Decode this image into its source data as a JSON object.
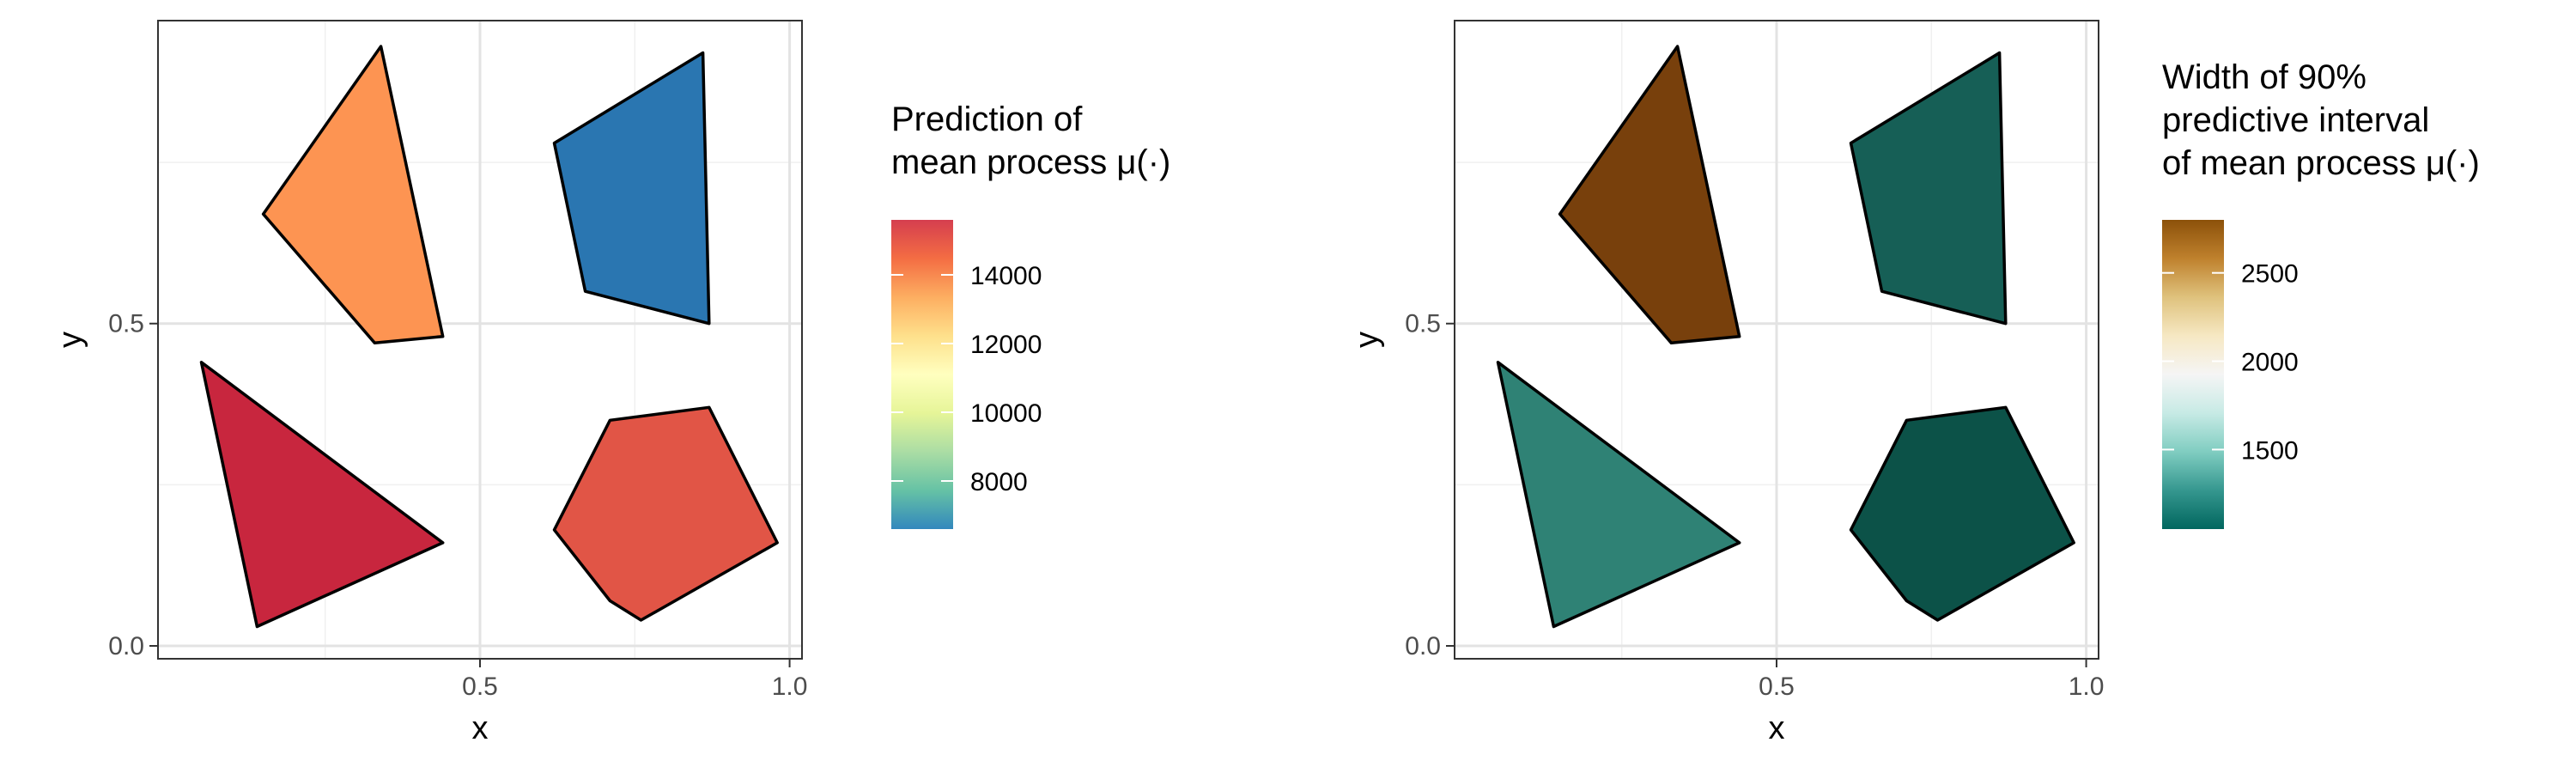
{
  "chart_data": [
    {
      "type": "polygon-map",
      "xlabel": "x",
      "ylabel": "y",
      "xlim": [
        -0.02,
        1.02
      ],
      "ylim": [
        -0.02,
        0.97
      ],
      "x_ticks": [
        {
          "value": 0.5,
          "label": "0.5"
        },
        {
          "value": 1.0,
          "label": "1.0"
        }
      ],
      "y_ticks": [
        {
          "value": 0.0,
          "label": "0.0"
        },
        {
          "value": 0.5,
          "label": "0.5"
        }
      ],
      "grid": true,
      "polygons": [
        {
          "id": "upper-left",
          "vertices": [
            [
              0.34,
              0.93
            ],
            [
              0.15,
              0.67
            ],
            [
              0.33,
              0.47
            ],
            [
              0.44,
              0.48
            ]
          ],
          "fill": "#FD9452"
        },
        {
          "id": "upper-right",
          "vertices": [
            [
              0.86,
              0.92
            ],
            [
              0.62,
              0.78
            ],
            [
              0.67,
              0.55
            ],
            [
              0.87,
              0.5
            ]
          ],
          "fill": "#2A76B1"
        },
        {
          "id": "lower-left",
          "vertices": [
            [
              0.05,
              0.44
            ],
            [
              0.44,
              0.16
            ],
            [
              0.14,
              0.03
            ]
          ],
          "fill": "#C8263E"
        },
        {
          "id": "lower-right",
          "vertices": [
            [
              0.71,
              0.35
            ],
            [
              0.87,
              0.37
            ],
            [
              0.98,
              0.16
            ],
            [
              0.76,
              0.04
            ],
            [
              0.71,
              0.07
            ],
            [
              0.62,
              0.18
            ]
          ],
          "fill": "#E15546"
        }
      ],
      "legend": {
        "title_lines": [
          "Prediction of",
          "mean process μ(·)"
        ],
        "placement": "right",
        "range": [
          6600,
          15600
        ],
        "colors": [
          "#D53E4F",
          "#F46D43",
          "#FDAE61",
          "#FEE08B",
          "#FFFFBF",
          "#E6F598",
          "#ABDDA4",
          "#66C2A5",
          "#3288BD"
        ],
        "ticks": [
          {
            "value": 14000,
            "label": "14000"
          },
          {
            "value": 12000,
            "label": "12000"
          },
          {
            "value": 10000,
            "label": "10000"
          },
          {
            "value": 8000,
            "label": "8000"
          }
        ]
      }
    },
    {
      "type": "polygon-map",
      "xlabel": "x",
      "ylabel": "y",
      "xlim": [
        -0.02,
        1.02
      ],
      "ylim": [
        -0.02,
        0.97
      ],
      "x_ticks": [
        {
          "value": 0.5,
          "label": "0.5"
        },
        {
          "value": 1.0,
          "label": "1.0"
        }
      ],
      "y_ticks": [
        {
          "value": 0.0,
          "label": "0.0"
        },
        {
          "value": 0.5,
          "label": "0.5"
        }
      ],
      "grid": true,
      "polygons": [
        {
          "id": "upper-left",
          "vertices": [
            [
              0.34,
              0.93
            ],
            [
              0.15,
              0.67
            ],
            [
              0.33,
              0.47
            ],
            [
              0.44,
              0.48
            ]
          ],
          "fill": "#78400C"
        },
        {
          "id": "upper-right",
          "vertices": [
            [
              0.86,
              0.92
            ],
            [
              0.62,
              0.78
            ],
            [
              0.67,
              0.55
            ],
            [
              0.87,
              0.5
            ]
          ],
          "fill": "#165F56"
        },
        {
          "id": "lower-left",
          "vertices": [
            [
              0.05,
              0.44
            ],
            [
              0.44,
              0.16
            ],
            [
              0.14,
              0.03
            ]
          ],
          "fill": "#2F8275"
        },
        {
          "id": "lower-right",
          "vertices": [
            [
              0.71,
              0.35
            ],
            [
              0.87,
              0.37
            ],
            [
              0.98,
              0.16
            ],
            [
              0.76,
              0.04
            ],
            [
              0.71,
              0.07
            ],
            [
              0.62,
              0.18
            ]
          ],
          "fill": "#0C5248"
        }
      ],
      "legend": {
        "title_lines": [
          "Width of 90%",
          "predictive interval",
          "of mean process μ(·)"
        ],
        "placement": "right",
        "range": [
          1050,
          2800
        ],
        "colors": [
          "#8C510A",
          "#BF812D",
          "#DFC27D",
          "#F6E8C3",
          "#F5F5F5",
          "#C7EAE5",
          "#80CDC1",
          "#35978F",
          "#01665E"
        ],
        "ticks": [
          {
            "value": 2500,
            "label": "2500"
          },
          {
            "value": 2000,
            "label": "2000"
          },
          {
            "value": 1500,
            "label": "1500"
          }
        ]
      }
    }
  ]
}
